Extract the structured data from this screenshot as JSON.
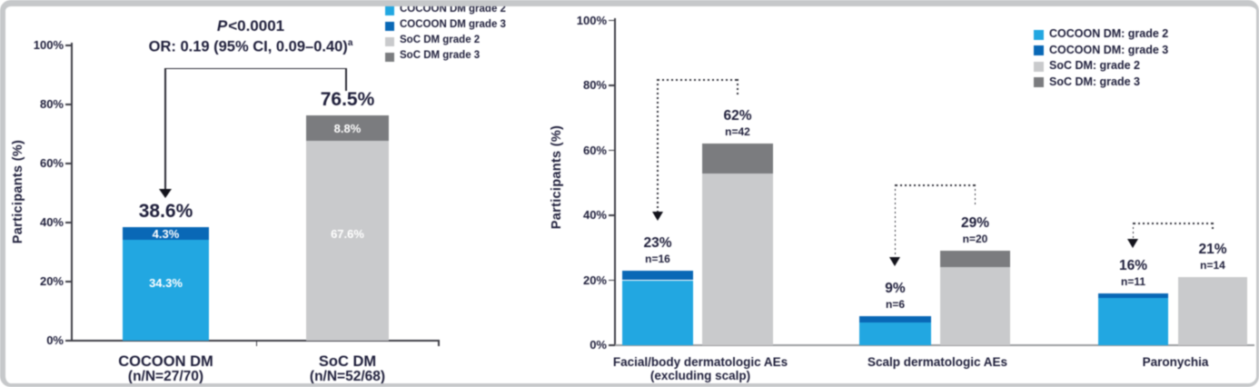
{
  "colors": {
    "cocoon_grade2": "#22a7e1",
    "cocoon_grade3": "#0968b6",
    "soc_grade2": "#c9cacc",
    "soc_grade3": "#7b7c7f",
    "text_navy": "#20203c",
    "axis": "#3d3d46",
    "baseline_gray": "#9b9da0",
    "inner_label": "#ffffff"
  },
  "chart_data": [
    {
      "type": "bar",
      "stacked": true,
      "ylabel": "Participants (%)",
      "ylim": [
        0,
        100
      ],
      "yticks": [
        "0%",
        "20%",
        "40%",
        "60%",
        "80%",
        "100%"
      ],
      "annotation": {
        "p_italic": "P",
        "p_rest": "<0.0001",
        "or_text": "OR: 0.19 (95% CI, 0.09–0.40)",
        "or_sup": "a"
      },
      "legend": [
        {
          "label": "COCOON DM grade 2",
          "key": "cocoon_grade2"
        },
        {
          "label": "COCOON DM grade 3",
          "key": "cocoon_grade3"
        },
        {
          "label": "SoC DM grade 2",
          "key": "soc_grade2"
        },
        {
          "label": "SoC DM grade 3",
          "key": "soc_grade3"
        }
      ],
      "bars": [
        {
          "label": "COCOON DM",
          "sublabel": "(n/N=27/70)",
          "total_label": "38.6%",
          "segments": [
            {
              "key": "cocoon_grade2",
              "value": 34.3,
              "label": "34.3%"
            },
            {
              "key": "cocoon_grade3",
              "value": 4.3,
              "label": "4.3%"
            }
          ]
        },
        {
          "label": "SoC DM",
          "sublabel": "(n/N=52/68)",
          "total_label": "76.5%",
          "segments": [
            {
              "key": "soc_grade2",
              "value": 67.6,
              "label": "67.6%"
            },
            {
              "key": "soc_grade3",
              "value": 8.8,
              "label": "8.8%"
            }
          ]
        }
      ]
    },
    {
      "type": "bar",
      "stacked": true,
      "ylabel": "Participants (%)",
      "ylim": [
        0,
        100
      ],
      "yticks": [
        "0%",
        "20%",
        "40%",
        "60%",
        "80%",
        "100%"
      ],
      "legend": [
        {
          "label": "COCOON DM: grade 2",
          "key": "cocoon_grade2"
        },
        {
          "label": "COCOON DM: grade 3",
          "key": "cocoon_grade3"
        },
        {
          "label": "SoC DM: grade 2",
          "key": "soc_grade2"
        },
        {
          "label": "SoC DM: grade 3",
          "key": "soc_grade3"
        }
      ],
      "groups": [
        {
          "label": "Facial/body dermatologic AEs",
          "sublabel": "(excluding scalp)",
          "bars": [
            {
              "series": "cocoon",
              "total": 23,
              "total_label": "23%",
              "n_label": "n=16",
              "segments": [
                {
                  "key": "cocoon_grade2",
                  "value": 20
                },
                {
                  "key": "cocoon_grade3",
                  "value": 3
                }
              ]
            },
            {
              "series": "soc",
              "total": 62,
              "total_label": "62%",
              "n_label": "n=42",
              "segments": [
                {
                  "key": "soc_grade2",
                  "value": 53
                },
                {
                  "key": "soc_grade3",
                  "value": 9
                }
              ]
            }
          ]
        },
        {
          "label": "Scalp dermatologic AEs",
          "sublabel": "",
          "bars": [
            {
              "series": "cocoon",
              "total": 9,
              "total_label": "9%",
              "n_label": "n=6",
              "segments": [
                {
                  "key": "cocoon_grade2",
                  "value": 7
                },
                {
                  "key": "cocoon_grade3",
                  "value": 2
                }
              ]
            },
            {
              "series": "soc",
              "total": 29,
              "total_label": "29%",
              "n_label": "n=20",
              "segments": [
                {
                  "key": "soc_grade2",
                  "value": 24
                },
                {
                  "key": "soc_grade3",
                  "value": 5
                }
              ]
            }
          ]
        },
        {
          "label": "Paronychia",
          "sublabel": "",
          "bars": [
            {
              "series": "cocoon",
              "total": 16,
              "total_label": "16%",
              "n_label": "n=11",
              "segments": [
                {
                  "key": "cocoon_grade2",
                  "value": 14.5
                },
                {
                  "key": "cocoon_grade3",
                  "value": 1.5
                }
              ]
            },
            {
              "series": "soc",
              "total": 21,
              "total_label": "21%",
              "n_label": "n=14",
              "segments": [
                {
                  "key": "soc_grade2",
                  "value": 21
                }
              ]
            }
          ]
        }
      ]
    }
  ]
}
